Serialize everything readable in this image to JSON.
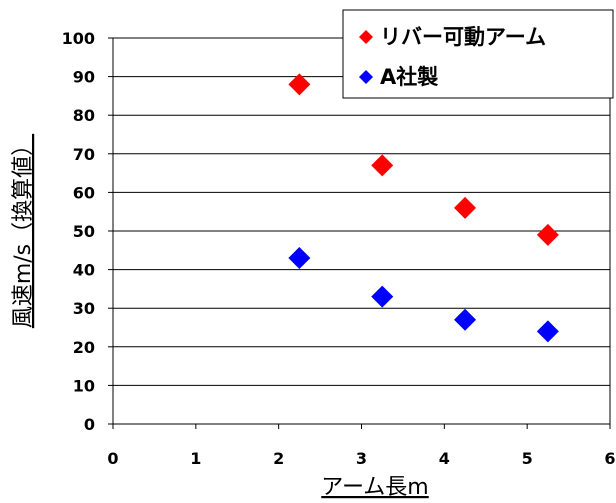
{
  "chart_data": {
    "type": "scatter",
    "xlabel": "アーム長m",
    "ylabel": "風速m/s（換算値）",
    "xlim": [
      0,
      6
    ],
    "ylim": [
      0,
      100
    ],
    "x_ticks": [
      "0",
      "1",
      "2",
      "3",
      "4",
      "5",
      "6"
    ],
    "y_ticks": [
      "0",
      "10",
      "20",
      "30",
      "40",
      "50",
      "60",
      "70",
      "80",
      "90",
      "100"
    ],
    "grid": "horizontal",
    "legend_position": "top-right",
    "series": [
      {
        "name": "リバー可動アーム",
        "color": "#ff0000",
        "marker": "diamond",
        "x": [
          2.25,
          3.25,
          4.25,
          5.25
        ],
        "y": [
          88,
          67,
          56,
          49
        ]
      },
      {
        "name": "A社製",
        "color": "#0000ff",
        "marker": "diamond",
        "x": [
          2.25,
          3.25,
          4.25,
          5.25
        ],
        "y": [
          43,
          33,
          27,
          24
        ]
      }
    ]
  }
}
